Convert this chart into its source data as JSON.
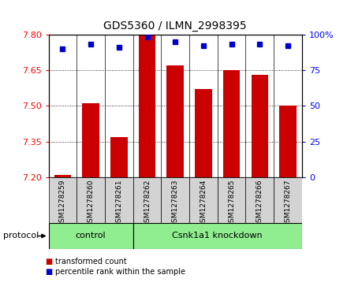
{
  "title": "GDS5360 / ILMN_2998395",
  "samples": [
    "GSM1278259",
    "GSM1278260",
    "GSM1278261",
    "GSM1278262",
    "GSM1278263",
    "GSM1278264",
    "GSM1278265",
    "GSM1278266",
    "GSM1278267"
  ],
  "transformed_count": [
    7.21,
    7.51,
    7.37,
    7.8,
    7.67,
    7.57,
    7.65,
    7.63,
    7.5
  ],
  "percentile_rank": [
    90,
    93,
    91,
    98,
    95,
    92,
    93,
    93,
    92
  ],
  "y_min": 7.2,
  "y_max": 7.8,
  "y_ticks": [
    7.2,
    7.35,
    7.5,
    7.65,
    7.8
  ],
  "y_ticks_right": [
    0,
    25,
    50,
    75,
    100
  ],
  "bar_color": "#cc0000",
  "dot_color": "#0000cc",
  "gray_color": "#d3d3d3",
  "green_color": "#90ee90",
  "control_count": 3,
  "knockdown_count": 6,
  "legend_bar_label": "transformed count",
  "legend_dot_label": "percentile rank within the sample",
  "title_fontsize": 10
}
